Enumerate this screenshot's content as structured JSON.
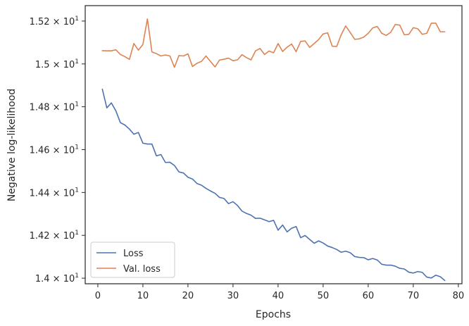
{
  "chart_data": {
    "type": "line",
    "xlabel": "Epochs",
    "ylabel": "Negative log-likelihood",
    "xlim": [
      -2.8,
      80.8
    ],
    "ylim": [
      13.974,
      15.272
    ],
    "x_ticks": [
      0,
      10,
      20,
      30,
      40,
      50,
      60,
      70,
      80
    ],
    "x_tick_labels": [
      "0",
      "10",
      "20",
      "30",
      "40",
      "50",
      "60",
      "70",
      "80"
    ],
    "y_ticks": [
      14.0,
      14.2,
      14.4,
      14.6,
      14.8,
      15.0,
      15.2
    ],
    "y_tick_labels": [
      {
        "mantissa": "1.4",
        "times": "×",
        "base": "10",
        "exp": "1"
      },
      {
        "mantissa": "1.42",
        "times": "×",
        "base": "10",
        "exp": "1"
      },
      {
        "mantissa": "1.44",
        "times": "×",
        "base": "10",
        "exp": "1"
      },
      {
        "mantissa": "1.46",
        "times": "×",
        "base": "10",
        "exp": "1"
      },
      {
        "mantissa": "1.48",
        "times": "×",
        "base": "10",
        "exp": "1"
      },
      {
        "mantissa": "1.5",
        "times": "×",
        "base": "10",
        "exp": "1"
      },
      {
        "mantissa": "1.52",
        "times": "×",
        "base": "10",
        "exp": "1"
      }
    ],
    "legend_position": "lower-left",
    "grid": false,
    "x": [
      1,
      2,
      3,
      4,
      5,
      6,
      7,
      8,
      9,
      10,
      11,
      12,
      13,
      14,
      15,
      16,
      17,
      18,
      19,
      20,
      21,
      22,
      23,
      24,
      25,
      26,
      27,
      28,
      29,
      30,
      31,
      32,
      33,
      34,
      35,
      36,
      37,
      38,
      39,
      40,
      41,
      42,
      43,
      44,
      45,
      46,
      47,
      48,
      49,
      50,
      51,
      52,
      53,
      54,
      55,
      56,
      57,
      58,
      59,
      60,
      61,
      62,
      63,
      64,
      65,
      66,
      67,
      68,
      69,
      70,
      71,
      72,
      73,
      74,
      75,
      76,
      77
    ],
    "series": [
      {
        "name": "Loss",
        "color": "#4c72b0",
        "values": [
          14.882,
          14.795,
          14.818,
          14.781,
          14.726,
          14.715,
          14.696,
          14.672,
          14.68,
          14.63,
          14.626,
          14.626,
          14.571,
          14.577,
          14.54,
          14.541,
          14.526,
          14.496,
          14.491,
          14.471,
          14.463,
          14.442,
          14.434,
          14.419,
          14.407,
          14.396,
          14.377,
          14.372,
          14.348,
          14.357,
          14.339,
          14.313,
          14.302,
          14.294,
          14.279,
          14.28,
          14.272,
          14.264,
          14.27,
          14.224,
          14.248,
          14.216,
          14.233,
          14.241,
          14.189,
          14.199,
          14.181,
          14.163,
          14.174,
          14.164,
          14.15,
          14.143,
          14.134,
          14.121,
          14.126,
          14.119,
          14.101,
          14.097,
          14.096,
          14.086,
          14.092,
          14.085,
          14.065,
          14.061,
          14.061,
          14.056,
          14.046,
          14.043,
          14.028,
          14.024,
          14.031,
          14.027,
          14.005,
          14.001,
          14.014,
          14.007,
          13.989
        ]
      },
      {
        "name": "Val. loss",
        "color": "#dd8452",
        "values": [
          15.062,
          15.061,
          15.061,
          15.066,
          15.044,
          15.034,
          15.021,
          15.095,
          15.064,
          15.091,
          15.21,
          15.056,
          15.048,
          15.037,
          15.042,
          15.037,
          14.984,
          15.039,
          15.037,
          15.047,
          14.988,
          15.003,
          15.012,
          15.037,
          15.011,
          14.986,
          15.018,
          15.022,
          15.027,
          15.015,
          15.019,
          15.043,
          15.029,
          15.019,
          15.061,
          15.072,
          15.044,
          15.06,
          15.052,
          15.095,
          15.058,
          15.078,
          15.093,
          15.057,
          15.105,
          15.107,
          15.077,
          15.095,
          15.114,
          15.14,
          15.145,
          15.083,
          15.081,
          15.136,
          15.177,
          15.147,
          15.115,
          15.117,
          15.125,
          15.143,
          15.168,
          15.175,
          15.143,
          15.133,
          15.148,
          15.184,
          15.181,
          15.136,
          15.138,
          15.169,
          15.164,
          15.138,
          15.143,
          15.19,
          15.19,
          15.15,
          15.15
        ]
      }
    ]
  }
}
